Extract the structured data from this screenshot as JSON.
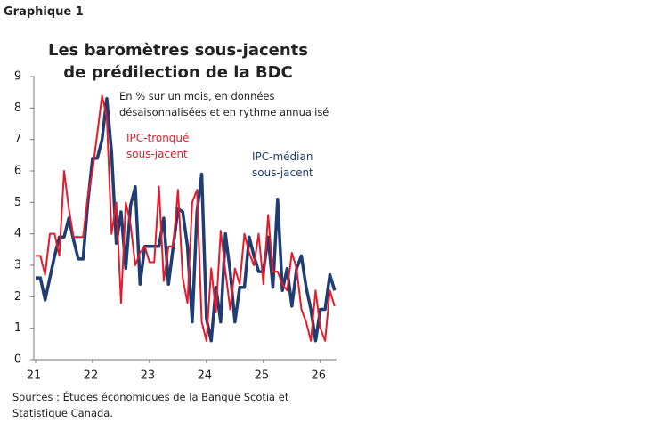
{
  "header": "Graphique 1",
  "chart_data": {
    "type": "line",
    "title": "Les baromètres sous-jacents de prédilection de la BDC",
    "subtitle": "En % sur un mois, en données désaisonnalisées et en rythme annualisé",
    "categories": [
      "21",
      null,
      null,
      null,
      null,
      null,
      null,
      null,
      null,
      null,
      null,
      null,
      "22",
      null,
      null,
      null,
      null,
      null,
      null,
      null,
      null,
      null,
      null,
      null,
      "23",
      null,
      null,
      null,
      null,
      null,
      null,
      null,
      null,
      null,
      null,
      null,
      "24",
      null,
      null,
      null,
      null,
      null,
      null,
      null,
      null,
      null,
      null,
      null,
      "25",
      null,
      null,
      null,
      null,
      null,
      null,
      null,
      null,
      null,
      null,
      null,
      "26",
      null,
      null,
      null
    ],
    "series": [
      {
        "name": "IPC-médian sous-jacent",
        "color": "#1f3d73",
        "values": [
          2.6,
          2.6,
          1.9,
          2.6,
          3.3,
          3.9,
          3.9,
          4.5,
          3.8,
          3.2,
          3.2,
          5.0,
          6.4,
          6.4,
          7.0,
          8.3,
          6.6,
          3.7,
          4.7,
          2.9,
          4.9,
          5.5,
          2.4,
          3.6,
          3.6,
          3.6,
          3.6,
          4.5,
          2.4,
          3.6,
          4.8,
          4.7,
          3.6,
          1.2,
          4.7,
          5.9,
          1.3,
          0.6,
          2.3,
          1.2,
          4.0,
          2.8,
          1.2,
          2.3,
          2.3,
          3.9,
          3.3,
          2.8,
          2.8,
          3.9,
          2.3,
          5.1,
          2.2,
          2.9,
          1.7,
          2.9,
          3.3,
          2.3,
          1.6,
          0.6,
          1.6,
          1.6,
          2.7,
          2.2
        ]
      },
      {
        "name": "IPC-tronqué sous-jacent",
        "color": "#e31b2b",
        "values": [
          3.3,
          3.3,
          2.7,
          4.0,
          4.0,
          3.3,
          6.0,
          4.8,
          3.9,
          3.9,
          3.9,
          5.2,
          6.0,
          7.2,
          8.4,
          7.7,
          4.0,
          5.0,
          1.8,
          5.0,
          4.3,
          3.0,
          3.4,
          3.6,
          3.1,
          3.1,
          5.5,
          2.5,
          3.6,
          3.6,
          5.4,
          2.6,
          1.8,
          5.0,
          5.4,
          1.2,
          0.6,
          2.9,
          1.5,
          4.1,
          2.8,
          1.6,
          2.9,
          2.4,
          4.0,
          3.4,
          3.0,
          4.0,
          2.4,
          4.6,
          2.8,
          2.8,
          2.4,
          2.2,
          3.4,
          2.9,
          1.6,
          1.2,
          0.6,
          2.2,
          1.0,
          0.6,
          2.2,
          1.7
        ]
      }
    ],
    "ylim": [
      0,
      9
    ],
    "yticks": [
      0,
      1,
      2,
      3,
      4,
      5,
      6,
      7,
      8,
      9
    ],
    "grid": false,
    "source": "Sources : Études économiques de la Banque Scotia et Statistique Canada."
  }
}
